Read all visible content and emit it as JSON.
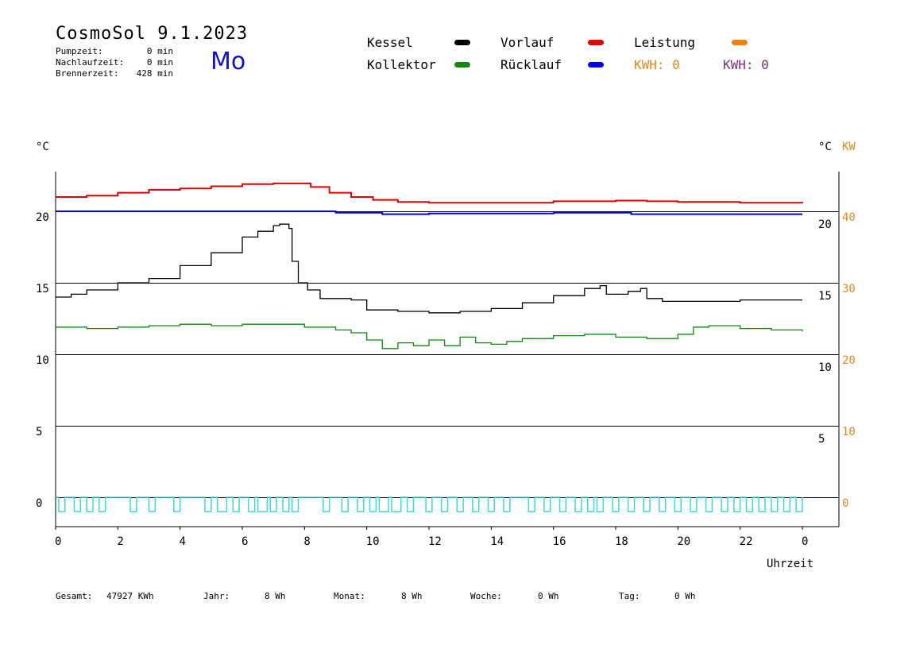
{
  "header": {
    "title": "CosmoSol 9.1.2023",
    "pump_label": "Pumpzeit:",
    "pump_value": "0 min",
    "nachlauf_label": "Nachlaufzeit:",
    "nachlauf_value": "0 min",
    "brenner_label": "Brennerzeit:",
    "brenner_value": "428 min",
    "day": "Mo"
  },
  "legend": {
    "kessel": "Kessel",
    "kollektor": "Kollektor",
    "vorlauf": "Vorlauf",
    "ruecklauf": "Rücklauf",
    "leistung": "Leistung",
    "kwh1": "KWH: 0",
    "kwh2": "KWH: 0",
    "colors": {
      "kessel": "#000000",
      "kollektor": "#118811",
      "vorlauf": "#e00000",
      "ruecklauf": "#0000e0",
      "leistung": "#f08010",
      "kwh2": "#803080",
      "pump": "#40d8d8"
    }
  },
  "chart_data": {
    "type": "line",
    "xlabel": "Uhrzeit",
    "x_ticks": [
      "0",
      "2",
      "4",
      "6",
      "8",
      "10",
      "12",
      "14",
      "16",
      "18",
      "20",
      "22",
      "0"
    ],
    "xlim": [
      0,
      24
    ],
    "left_unit": "°C",
    "right_unit_c": "°C",
    "right_unit_kw": "KW",
    "ylim": [
      -1.5,
      23.5
    ],
    "left_ticks": [
      "20",
      "15",
      "10",
      "5",
      "0"
    ],
    "inner_ticks": [
      "20",
      "15",
      "10",
      "5"
    ],
    "kw_ticks": [
      "40",
      "30",
      "20",
      "10",
      "0"
    ],
    "gridlines": [
      0,
      5,
      10,
      15,
      20
    ],
    "series": [
      {
        "name": "Vorlauf",
        "color": "#e00000",
        "x": [
          0,
          1,
          2,
          3,
          4,
          5,
          6,
          7,
          7.6,
          8.2,
          8.8,
          9.5,
          10.2,
          11,
          12,
          14,
          16,
          18,
          19,
          20,
          22,
          24
        ],
        "y": [
          21.0,
          21.1,
          21.3,
          21.5,
          21.6,
          21.75,
          21.9,
          21.95,
          21.95,
          21.7,
          21.3,
          21.0,
          20.8,
          20.65,
          20.6,
          20.6,
          20.7,
          20.75,
          20.7,
          20.65,
          20.6,
          20.55
        ]
      },
      {
        "name": "Rücklauf",
        "color": "#0000e0",
        "x": [
          0,
          2,
          4,
          6,
          7.8,
          9,
          10.5,
          12,
          16,
          18.5,
          20,
          22,
          24
        ],
        "y": [
          20.0,
          20.0,
          20.0,
          20.0,
          20.0,
          19.9,
          19.8,
          19.85,
          19.9,
          19.8,
          19.8,
          19.8,
          19.8
        ]
      },
      {
        "name": "Kessel",
        "color": "#000000",
        "x": [
          0,
          0.5,
          1,
          2,
          3,
          4,
          5,
          6,
          6.5,
          7,
          7.2,
          7.5,
          7.6,
          7.8,
          8.1,
          8.5,
          9.5,
          10,
          11,
          12,
          13,
          14,
          15,
          16,
          17,
          17.5,
          17.7,
          18.4,
          18.8,
          19,
          19.5,
          20,
          22,
          24
        ],
        "y": [
          14.0,
          14.2,
          14.5,
          15.0,
          15.3,
          16.2,
          17.1,
          18.2,
          18.6,
          19.0,
          19.1,
          18.8,
          16.5,
          15.0,
          14.5,
          13.9,
          13.8,
          13.1,
          13.0,
          12.9,
          13.0,
          13.2,
          13.6,
          14.1,
          14.6,
          14.8,
          14.2,
          14.4,
          14.6,
          13.9,
          13.7,
          13.7,
          13.8,
          13.8
        ]
      },
      {
        "name": "Kollektor",
        "color": "#118811",
        "x": [
          0,
          1,
          2,
          3,
          4,
          5,
          6,
          7,
          8,
          9,
          9.5,
          10,
          10.5,
          11,
          11.5,
          12,
          12.5,
          13,
          13.5,
          14,
          14.5,
          15,
          16,
          17,
          18,
          19,
          20,
          20.5,
          21,
          22,
          23,
          24
        ],
        "y": [
          11.9,
          11.8,
          11.9,
          12.0,
          12.1,
          12.0,
          12.1,
          12.1,
          11.9,
          11.7,
          11.5,
          11.0,
          10.4,
          10.8,
          10.6,
          11.0,
          10.6,
          11.2,
          10.8,
          10.7,
          10.9,
          11.1,
          11.3,
          11.4,
          11.2,
          11.1,
          11.4,
          11.9,
          12.0,
          11.8,
          11.7,
          11.6
        ]
      }
    ],
    "pump_series": {
      "name": "",
      "color": "#40d8d8",
      "on_intervals": [
        [
          0.1,
          0.3
        ],
        [
          0.6,
          0.8
        ],
        [
          1.0,
          1.2
        ],
        [
          1.4,
          1.6
        ],
        [
          2.4,
          2.6
        ],
        [
          3.0,
          3.2
        ],
        [
          3.8,
          4.0
        ],
        [
          4.8,
          5.0
        ],
        [
          5.2,
          5.5
        ],
        [
          5.7,
          5.9
        ],
        [
          6.2,
          6.4
        ],
        [
          6.5,
          6.8
        ],
        [
          6.9,
          7.1
        ],
        [
          7.3,
          7.5
        ],
        [
          7.6,
          7.8
        ],
        [
          8.6,
          8.8
        ],
        [
          9.2,
          9.4
        ],
        [
          9.7,
          9.9
        ],
        [
          10.1,
          10.3
        ],
        [
          10.4,
          10.7
        ],
        [
          10.8,
          11.1
        ],
        [
          11.3,
          11.5
        ],
        [
          11.9,
          12.1
        ],
        [
          12.4,
          12.6
        ],
        [
          12.9,
          13.1
        ],
        [
          13.4,
          13.6
        ],
        [
          13.9,
          14.1
        ],
        [
          14.4,
          14.6
        ],
        [
          15.2,
          15.4
        ],
        [
          15.7,
          15.9
        ],
        [
          16.2,
          16.4
        ],
        [
          16.7,
          16.9
        ],
        [
          17.1,
          17.3
        ],
        [
          17.4,
          17.6
        ],
        [
          17.9,
          18.1
        ],
        [
          18.4,
          18.6
        ],
        [
          18.9,
          19.1
        ],
        [
          19.4,
          19.6
        ],
        [
          19.9,
          20.1
        ],
        [
          20.4,
          20.6
        ],
        [
          20.9,
          21.1
        ],
        [
          21.4,
          21.6
        ],
        [
          21.8,
          22.0
        ],
        [
          22.2,
          22.4
        ],
        [
          22.6,
          22.8
        ],
        [
          23.0,
          23.2
        ],
        [
          23.4,
          23.6
        ],
        [
          23.8,
          24.0
        ]
      ]
    }
  },
  "footer": {
    "gesamt_label": "Gesamt:",
    "gesamt_value": "47927 KWh",
    "jahr_label": "Jahr:",
    "jahr_value": "8 Wh",
    "monat_label": "Monat:",
    "monat_value": "8 Wh",
    "woche_label": "Woche:",
    "woche_value": "0 Wh",
    "tag_label": "Tag:",
    "tag_value": "0 Wh"
  }
}
